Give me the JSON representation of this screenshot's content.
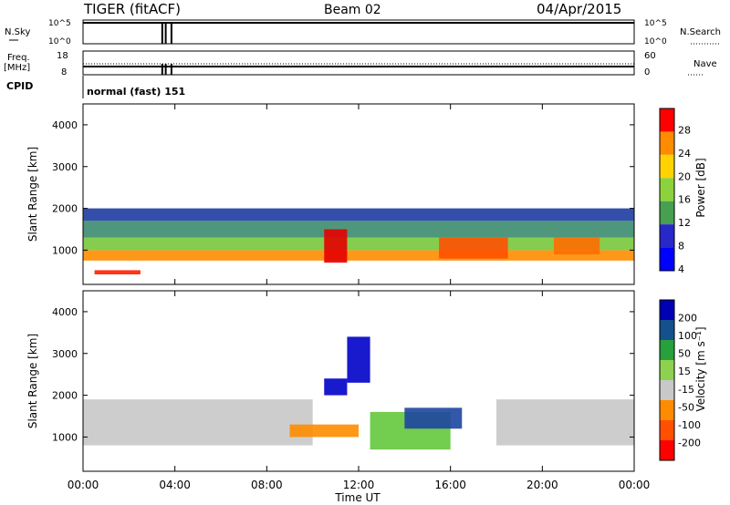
{
  "header": {
    "radar": "TIGER (fitACF)",
    "beam": "Beam 02",
    "date": "04/Apr/2015"
  },
  "sky_panel": {
    "left_label": "N.Sky",
    "left_ticks": [
      "10^5",
      "10^0"
    ],
    "right_ticks": [
      "10^5",
      "10^0"
    ],
    "right_label": "N.Search"
  },
  "freq_panel": {
    "left_label_1": "Freq.",
    "left_label_2": "[MHz]",
    "left_ticks": [
      "18",
      "8"
    ],
    "right_ticks": [
      "60",
      "0"
    ],
    "right_label": "Nave"
  },
  "cpid": {
    "label": "CPID",
    "value": "normal (fast) 151"
  },
  "chart_data": [
    {
      "type": "heatmap",
      "parameter": "Power",
      "ylabel": "Slant Range [km]",
      "yticks": [
        "4000",
        "3000",
        "2000",
        "1000"
      ],
      "ylim": [
        180,
        4500
      ],
      "colorbar_label": "Power [dB]",
      "colorbar_ticks": [
        "28",
        "24",
        "20",
        "16",
        "12",
        "8",
        "4"
      ],
      "colorbar_colors": [
        "#ff0000",
        "#ff8c00",
        "#ffd200",
        "#8cd23c",
        "#46a050",
        "#2828c8",
        "#0000ff"
      ],
      "bands": [
        {
          "t0": 0.0,
          "t1": 24.0,
          "r0": 750,
          "r1": 1000,
          "color": "#ff8c00"
        },
        {
          "t0": 0.0,
          "t1": 24.0,
          "r0": 1000,
          "r1": 1300,
          "color": "#78c83c"
        },
        {
          "t0": 0.0,
          "t1": 24.0,
          "r0": 1300,
          "r1": 1700,
          "color": "#3c8c6e"
        },
        {
          "t0": 0.0,
          "t1": 24.0,
          "r0": 1700,
          "r1": 2000,
          "color": "#1e3ca0"
        },
        {
          "t0": 0.5,
          "t1": 2.5,
          "r0": 420,
          "r1": 520,
          "color": "#ff1e00"
        },
        {
          "t0": 10.5,
          "t1": 11.5,
          "r0": 700,
          "r1": 1500,
          "color": "#e60000"
        },
        {
          "t0": 15.5,
          "t1": 18.5,
          "r0": 800,
          "r1": 1300,
          "color": "#ff5000"
        },
        {
          "t0": 20.5,
          "t1": 22.5,
          "r0": 900,
          "r1": 1300,
          "color": "#ff6e00"
        }
      ]
    },
    {
      "type": "heatmap",
      "parameter": "Velocity",
      "ylabel": "Slant Range [km]",
      "yticks": [
        "4000",
        "3000",
        "2000",
        "1000"
      ],
      "ylim": [
        180,
        4500
      ],
      "colorbar_label": "Velocity [m s⁻¹]",
      "colorbar_ticks": [
        "200",
        "100",
        "50",
        "15",
        "-15",
        "-50",
        "-100",
        "-200"
      ],
      "colorbar_colors": [
        "#0000b4",
        "#14508c",
        "#28a03c",
        "#8cd250",
        "#c8c8c8",
        "#ff8c00",
        "#ff5000",
        "#ff0000"
      ],
      "bands": [
        {
          "t0": 0.0,
          "t1": 10.0,
          "r0": 800,
          "r1": 1900,
          "color": "#c8c8c8"
        },
        {
          "t0": 18.0,
          "t1": 24.0,
          "r0": 800,
          "r1": 1900,
          "color": "#c8c8c8"
        },
        {
          "t0": 9.0,
          "t1": 12.0,
          "r0": 1000,
          "r1": 1300,
          "color": "#ff8c00"
        },
        {
          "t0": 12.5,
          "t1": 16.0,
          "r0": 700,
          "r1": 1600,
          "color": "#64c83c"
        },
        {
          "t0": 14.0,
          "t1": 16.5,
          "r0": 1200,
          "r1": 1700,
          "color": "#1e46a0"
        },
        {
          "t0": 10.5,
          "t1": 11.5,
          "r0": 2000,
          "r1": 2400,
          "color": "#0000c8"
        },
        {
          "t0": 11.5,
          "t1": 12.5,
          "r0": 2300,
          "r1": 3400,
          "color": "#0000c8"
        }
      ]
    }
  ],
  "time_axis": {
    "ticks": [
      "00:00",
      "04:00",
      "08:00",
      "12:00",
      "16:00",
      "20:00",
      "00:00"
    ],
    "label": "Time UT"
  }
}
